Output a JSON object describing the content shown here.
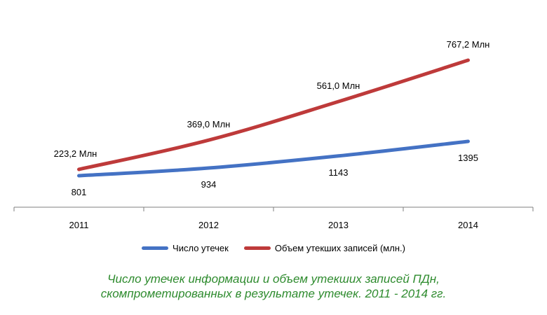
{
  "chart_data": {
    "type": "line",
    "categories": [
      "2011",
      "2012",
      "2013",
      "2014"
    ],
    "series": [
      {
        "name": "Число утечек",
        "color": "#4472c4",
        "values": [
          801,
          934,
          1143,
          1395
        ],
        "labels": [
          "801",
          "934",
          "1143",
          "1395"
        ]
      },
      {
        "name": "Объем утекших записей (млн.)",
        "color": "#be3a3a",
        "values": [
          223.2,
          369.0,
          561.0,
          767.2
        ],
        "labels": [
          "223,2 Млн",
          "369,0 Млн",
          "561,0 Млн",
          "767,2 Млн"
        ]
      }
    ],
    "legend_position": "bottom",
    "grid": false
  },
  "caption": {
    "line1": "Число утечек информации и объем утекших записей ПДн,",
    "line2": "скомпрометированных в результате утечек. 2011 - 2014 гг."
  }
}
